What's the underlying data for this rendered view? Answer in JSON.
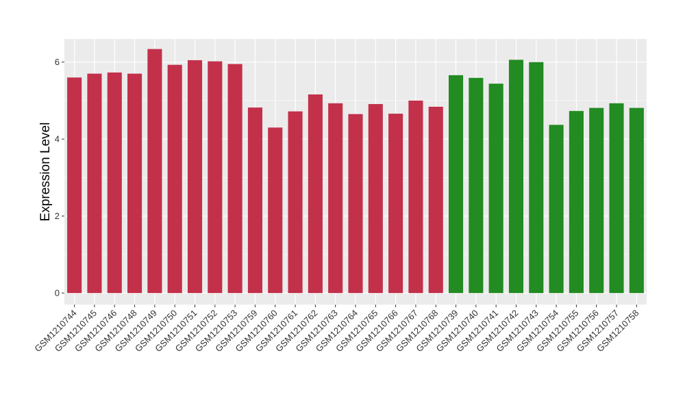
{
  "chart_data": {
    "type": "bar",
    "title": "",
    "xlabel": "",
    "ylabel": "Expression Level",
    "ylim": [
      -0.3,
      6.6
    ],
    "yticks": [
      0,
      2,
      4,
      6
    ],
    "grid": true,
    "background": "#ebebeb",
    "gridline_color": "#ffffff",
    "group_colors": [
      "#c3304a",
      "#228b22"
    ],
    "categories": [
      "GSM1210744",
      "GSM1210745",
      "GSM1210746",
      "GSM1210748",
      "GSM1210749",
      "GSM1210750",
      "GSM1210751",
      "GSM1210752",
      "GSM1210753",
      "GSM1210759",
      "GSM1210760",
      "GSM1210761",
      "GSM1210762",
      "GSM1210763",
      "GSM1210764",
      "GSM1210765",
      "GSM1210766",
      "GSM1210767",
      "GSM1210768",
      "GSM1210739",
      "GSM1210740",
      "GSM1210741",
      "GSM1210742",
      "GSM1210743",
      "GSM1210754",
      "GSM1210755",
      "GSM1210756",
      "GSM1210757",
      "GSM1210758"
    ],
    "values": [
      5.6,
      5.7,
      5.73,
      5.7,
      6.34,
      5.93,
      6.05,
      6.02,
      5.95,
      4.82,
      4.3,
      4.72,
      5.16,
      4.93,
      4.65,
      4.91,
      4.66,
      5.0,
      4.84,
      5.66,
      5.59,
      5.44,
      6.06,
      6.0,
      4.37,
      4.73,
      4.81,
      4.93,
      4.81
    ],
    "group": [
      0,
      0,
      0,
      0,
      0,
      0,
      0,
      0,
      0,
      0,
      0,
      0,
      0,
      0,
      0,
      0,
      0,
      0,
      0,
      1,
      1,
      1,
      1,
      1,
      1,
      1,
      1,
      1,
      1
    ]
  }
}
